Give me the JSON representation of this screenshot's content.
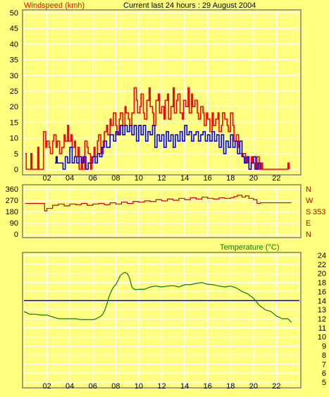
{
  "header": {
    "wind_title": "Windspeed (kmh)",
    "subtitle": "Current last 24 hours : 29 August 2004"
  },
  "colors": {
    "background": "#ffff80",
    "gust": "#ff0000",
    "avg_wind": "#0000ff",
    "direction": "#d00000",
    "temperature": "#008000",
    "reference_line": "#000080",
    "grid": "#ffffff",
    "frame": "#808080",
    "wind_title_color": "#ff0000",
    "temp_title_color": "#008000"
  },
  "chart_data": [
    {
      "type": "line",
      "title": "Windspeed (kmh)",
      "x_ticks": [
        "02",
        "04",
        "06",
        "08",
        "10",
        "12",
        "14",
        "16",
        "18",
        "20",
        "22"
      ],
      "xlim": [
        0,
        24
      ],
      "ylim": [
        0,
        50
      ],
      "y_ticks": [
        "0",
        "5",
        "10",
        "15",
        "20",
        "25",
        "30",
        "35",
        "40",
        "45",
        "50"
      ],
      "grid": true,
      "step": true,
      "series": [
        {
          "key": "gust",
          "x": [
            0.1,
            0.2,
            0.6,
            0.7,
            1.2,
            1.3,
            1.7,
            1.9,
            2.0,
            2.2,
            2.3,
            2.5,
            2.6,
            2.8,
            2.9,
            3.1,
            3.3,
            3.5,
            3.6,
            3.8,
            3.9,
            4.1,
            4.2,
            4.4,
            4.5,
            4.7,
            4.8,
            5.0,
            5.1,
            5.3,
            5.5,
            5.6,
            5.8,
            5.9,
            6.1,
            6.2,
            6.4,
            6.5,
            6.7,
            6.9,
            7.0,
            7.2,
            7.3,
            7.5,
            7.6,
            7.8,
            8.0,
            8.1,
            8.3,
            8.4,
            8.6,
            8.8,
            8.9,
            9.1,
            9.2,
            9.4,
            9.6,
            9.8,
            9.9,
            10.1,
            10.2,
            10.4,
            10.5,
            10.7,
            10.9,
            11.0,
            11.2,
            11.3,
            11.5,
            11.7,
            11.8,
            12.0,
            12.2,
            12.3,
            12.5,
            12.6,
            12.8,
            13.0,
            13.1,
            13.3,
            13.4,
            13.6,
            13.8,
            13.9,
            14.1,
            14.3,
            14.4,
            14.6,
            14.7,
            14.9,
            15.1,
            15.2,
            15.4,
            15.6,
            15.7,
            15.9,
            16.0,
            16.2,
            16.4,
            16.5,
            16.7,
            16.9,
            17.0,
            17.2,
            17.3,
            17.5,
            17.7,
            17.8,
            18.0,
            18.2,
            18.3,
            18.5,
            18.7,
            18.8,
            19.0,
            19.1,
            19.3,
            19.5,
            19.6,
            19.8,
            19.9,
            20.1,
            20.3,
            20.5,
            20.7,
            20.8,
            23.0,
            23.1
          ],
          "y": [
            5,
            0,
            5,
            0,
            7,
            0,
            12,
            7,
            9,
            7,
            5,
            9,
            11,
            7,
            9,
            5,
            7,
            11,
            9,
            14,
            9,
            11,
            7,
            9,
            4,
            7,
            0,
            4,
            0,
            9,
            7,
            5,
            0,
            4,
            7,
            4,
            9,
            11,
            5,
            9,
            12,
            14,
            11,
            16,
            14,
            18,
            14,
            11,
            16,
            18,
            14,
            20,
            18,
            16,
            14,
            18,
            26,
            22,
            18,
            20,
            24,
            18,
            16,
            22,
            26,
            20,
            18,
            14,
            22,
            24,
            18,
            20,
            16,
            22,
            24,
            16,
            20,
            26,
            18,
            22,
            24,
            18,
            16,
            22,
            20,
            26,
            18,
            24,
            20,
            22,
            18,
            16,
            20,
            18,
            14,
            18,
            16,
            12,
            18,
            14,
            16,
            18,
            12,
            14,
            18,
            16,
            14,
            12,
            18,
            14,
            9,
            11,
            7,
            5,
            4,
            5,
            2,
            4,
            0,
            4,
            2,
            0,
            4,
            0,
            2,
            0,
            2,
            0
          ],
          "name": ""
        },
        {
          "key": "avg",
          "x": [
            2.7,
            2.8,
            2.9,
            3.4,
            3.6,
            3.8,
            4.0,
            4.2,
            4.4,
            4.6,
            4.8,
            5.0,
            5.2,
            5.4,
            5.6,
            6.0,
            6.2,
            6.4,
            6.6,
            6.8,
            7.0,
            7.2,
            7.5,
            7.8,
            8.0,
            8.2,
            8.4,
            8.6,
            8.8,
            9.0,
            9.2,
            9.4,
            9.6,
            9.8,
            10.0,
            10.2,
            10.4,
            10.6,
            10.8,
            11.0,
            11.2,
            11.4,
            11.6,
            11.8,
            12.0,
            12.2,
            12.4,
            12.6,
            12.8,
            13.0,
            13.2,
            13.4,
            13.6,
            13.8,
            14.0,
            14.2,
            14.4,
            14.6,
            14.8,
            15.0,
            15.2,
            15.4,
            15.6,
            15.8,
            16.0,
            16.2,
            16.4,
            16.6,
            16.8,
            17.0,
            17.2,
            17.4,
            17.6,
            17.8,
            18.0,
            18.2,
            18.4,
            18.6,
            18.8,
            19.0,
            19.2,
            19.4,
            19.6,
            19.8,
            20.0,
            20.2,
            20.4,
            20.6
          ],
          "y": [
            2,
            4,
            2,
            0,
            4,
            2,
            7,
            2,
            4,
            2,
            4,
            2,
            4,
            0,
            2,
            4,
            2,
            5,
            4,
            7,
            9,
            7,
            11,
            9,
            12,
            11,
            14,
            11,
            14,
            12,
            14,
            11,
            14,
            9,
            14,
            11,
            14,
            9,
            12,
            11,
            14,
            7,
            11,
            9,
            11,
            7,
            12,
            9,
            11,
            7,
            11,
            9,
            12,
            9,
            14,
            11,
            12,
            9,
            11,
            12,
            9,
            11,
            12,
            9,
            11,
            9,
            12,
            9,
            11,
            7,
            11,
            5,
            9,
            7,
            11,
            7,
            9,
            5,
            9,
            4,
            2,
            4,
            0,
            2,
            4,
            0,
            2,
            0
          ],
          "name": ""
        }
      ]
    },
    {
      "type": "line",
      "title": "",
      "xlim": [
        0,
        24
      ],
      "ylim": [
        0,
        360
      ],
      "y_ticks": [
        "0",
        "90",
        "180",
        "270",
        "360"
      ],
      "compass_labels": [
        "N",
        "W",
        "S",
        "E",
        "N"
      ],
      "current_value_label": "353",
      "grid": true,
      "series": [
        {
          "key": "direction",
          "x": [
            0.1,
            1.5,
            1.8,
            2.0,
            2.5,
            3,
            3.5,
            4,
            4.5,
            5,
            5.5,
            6,
            6.5,
            7,
            7.5,
            8,
            8.5,
            9,
            9.5,
            10,
            10.5,
            11,
            11.5,
            12,
            12.5,
            13,
            13.5,
            14,
            14.5,
            15,
            15.5,
            16,
            16.5,
            17,
            17.5,
            18,
            18.3,
            18.6,
            19,
            19.3,
            19.6,
            20,
            20.3,
            20.6,
            21,
            22,
            23.3
          ],
          "y": [
            245,
            245,
            185,
            205,
            230,
            240,
            225,
            240,
            235,
            245,
            230,
            240,
            245,
            235,
            250,
            240,
            255,
            245,
            260,
            255,
            265,
            260,
            275,
            265,
            280,
            270,
            285,
            275,
            290,
            280,
            295,
            285,
            280,
            290,
            285,
            290,
            300,
            310,
            295,
            305,
            285,
            275,
            245,
            250,
            250,
            250,
            250
          ],
          "name": ""
        }
      ]
    },
    {
      "type": "line",
      "title": "Temperature (°C)",
      "xlim": [
        0,
        24
      ],
      "ylim": [
        4,
        24
      ],
      "y_ticks": [
        "5",
        "6",
        "7",
        "8",
        "9",
        "10",
        "11",
        "12",
        "13",
        "14",
        "16",
        "18",
        "20",
        "22",
        "24"
      ],
      "reference_value": 14,
      "grid": true,
      "series": [
        {
          "key": "temperature",
          "x": [
            0,
            0.5,
            1.0,
            1.5,
            2.0,
            2.5,
            3.0,
            3.5,
            4.0,
            4.5,
            5.0,
            5.5,
            6.0,
            6.3,
            6.6,
            6.8,
            7.0,
            7.2,
            7.4,
            7.6,
            7.8,
            8.0,
            8.2,
            8.4,
            8.6,
            8.8,
            9.0,
            9.2,
            9.4,
            9.6,
            9.8,
            10.0,
            10.5,
            11.0,
            11.5,
            12.0,
            12.5,
            13.0,
            13.5,
            14.0,
            14.5,
            15.0,
            15.5,
            16.0,
            16.5,
            17.0,
            17.5,
            18.0,
            18.5,
            19.0,
            19.5,
            20.0,
            20.5,
            21.0,
            21.5,
            22.0,
            22.5,
            23.0,
            23.3
          ],
          "y": [
            12.8,
            12.5,
            12.5,
            12.4,
            12.4,
            12.2,
            12.0,
            12.0,
            12.0,
            12.0,
            11.9,
            11.9,
            11.9,
            12.0,
            12.2,
            12.4,
            12.8,
            13.5,
            14.8,
            16.0,
            17.0,
            17.5,
            18.5,
            19.5,
            20.0,
            20.2,
            20.0,
            19.0,
            17.0,
            16.5,
            16.4,
            16.5,
            16.5,
            17.0,
            17.2,
            17.0,
            17.2,
            17.3,
            17.0,
            17.5,
            17.5,
            17.8,
            18.0,
            17.6,
            17.5,
            17.2,
            17.0,
            17.2,
            16.8,
            16.0,
            15.5,
            14.5,
            13.5,
            13.0,
            12.8,
            12.3,
            12.0,
            12.0,
            11.6
          ],
          "name": ""
        }
      ]
    }
  ],
  "legend": {
    "temperature_label": "Temperature (°C)"
  }
}
